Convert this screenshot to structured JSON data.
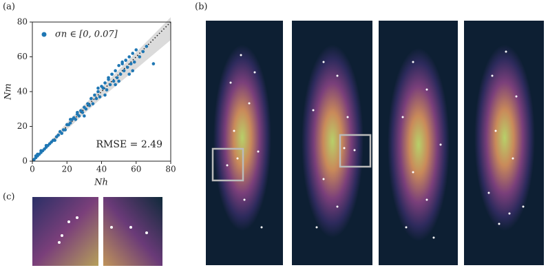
{
  "chart_data": {
    "type": "scatter",
    "panel_labels": [
      "(a)",
      "(b)",
      "(c)"
    ],
    "xlabel": "Nh",
    "ylabel": "Nm",
    "xlim": [
      0,
      80
    ],
    "ylim": [
      0,
      80
    ],
    "xticks": [
      0,
      20,
      40,
      60,
      80
    ],
    "yticks": [
      0,
      20,
      40,
      60,
      80
    ],
    "annotation": "RMSE = 2.49",
    "series": [
      {
        "name": "σn ∈ [0, 0.07]",
        "color": "#1f77b4",
        "x": [
          1,
          2,
          2,
          3,
          3,
          4,
          5,
          5,
          6,
          7,
          8,
          8,
          9,
          10,
          11,
          12,
          13,
          14,
          15,
          16,
          17,
          18,
          19,
          20,
          21,
          22,
          23,
          24,
          25,
          26,
          27,
          28,
          29,
          30,
          31,
          32,
          33,
          34,
          35,
          36,
          37,
          38,
          39,
          40,
          41,
          42,
          43,
          44,
          45,
          46,
          47,
          48,
          49,
          50,
          51,
          52,
          53,
          54,
          55,
          56,
          57,
          58,
          59,
          60,
          62,
          64,
          66,
          70,
          38,
          42,
          46,
          50,
          54,
          58,
          30,
          34,
          22,
          26,
          48,
          52,
          56,
          44
        ],
        "y": [
          1,
          2,
          3,
          3,
          4,
          4,
          5,
          6,
          6,
          7,
          8,
          9,
          9,
          10,
          11,
          12,
          12,
          14,
          15,
          17,
          16,
          18,
          18,
          21,
          21,
          22,
          24,
          25,
          24,
          27,
          26,
          29,
          28,
          31,
          30,
          33,
          32,
          36,
          33,
          38,
          36,
          40,
          37,
          43,
          42,
          45,
          41,
          47,
          44,
          50,
          46,
          52,
          48,
          55,
          50,
          57,
          52,
          58,
          54,
          60,
          56,
          62,
          57,
          64,
          60,
          63,
          66,
          56,
          42,
          38,
          50,
          46,
          58,
          52,
          26,
          36,
          24,
          28,
          44,
          56,
          50,
          48
        ]
      }
    ]
  }
}
